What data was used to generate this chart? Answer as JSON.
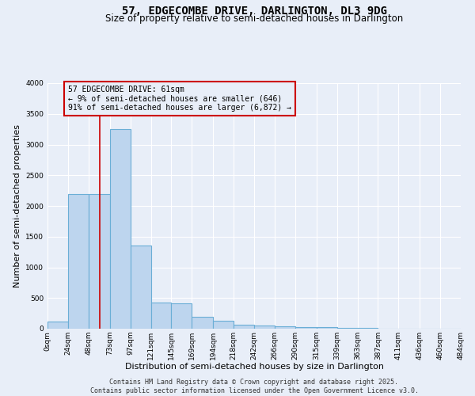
{
  "title": "57, EDGECOMBE DRIVE, DARLINGTON, DL3 9DG",
  "subtitle": "Size of property relative to semi-detached houses in Darlington",
  "xlabel": "Distribution of semi-detached houses by size in Darlington",
  "ylabel": "Number of semi-detached properties",
  "annotation_title": "57 EDGECOMBE DRIVE: 61sqm",
  "annotation_line1": "← 9% of semi-detached houses are smaller (646)",
  "annotation_line2": "91% of semi-detached houses are larger (6,872) →",
  "footer_line1": "Contains HM Land Registry data © Crown copyright and database right 2025.",
  "footer_line2": "Contains public sector information licensed under the Open Government Licence v3.0.",
  "property_size": 61,
  "bar_left_edges": [
    0,
    24,
    48,
    73,
    97,
    121,
    145,
    169,
    194,
    218,
    242,
    266,
    290,
    315,
    339,
    363,
    387,
    411,
    436,
    460
  ],
  "bar_widths": [
    24,
    24,
    25,
    24,
    24,
    24,
    24,
    25,
    24,
    24,
    24,
    24,
    25,
    24,
    24,
    24,
    24,
    25,
    24,
    24
  ],
  "bar_heights": [
    120,
    2200,
    2200,
    3250,
    1350,
    430,
    410,
    195,
    130,
    70,
    50,
    35,
    25,
    20,
    15,
    10,
    5,
    5,
    5,
    5
  ],
  "bar_color": "#bdd5ee",
  "bar_edge_color": "#6aaed6",
  "vline_color": "#cc0000",
  "vline_x": 61,
  "annotation_box_color": "#cc0000",
  "ylim": [
    0,
    4000
  ],
  "yticks": [
    0,
    500,
    1000,
    1500,
    2000,
    2500,
    3000,
    3500,
    4000
  ],
  "tick_labels": [
    "0sqm",
    "24sqm",
    "48sqm",
    "73sqm",
    "97sqm",
    "121sqm",
    "145sqm",
    "169sqm",
    "194sqm",
    "218sqm",
    "242sqm",
    "266sqm",
    "290sqm",
    "315sqm",
    "339sqm",
    "363sqm",
    "387sqm",
    "411sqm",
    "436sqm",
    "460sqm",
    "484sqm"
  ],
  "background_color": "#e8eef8",
  "grid_color": "#ffffff",
  "title_fontsize": 10,
  "subtitle_fontsize": 8.5,
  "axis_label_fontsize": 8,
  "tick_fontsize": 6.5,
  "annotation_fontsize": 7,
  "footer_fontsize": 6
}
